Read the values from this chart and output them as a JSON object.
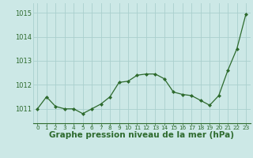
{
  "x": [
    0,
    1,
    2,
    3,
    4,
    5,
    6,
    7,
    8,
    9,
    10,
    11,
    12,
    13,
    14,
    15,
    16,
    17,
    18,
    19,
    20,
    21,
    22,
    23
  ],
  "y": [
    1011.0,
    1011.5,
    1011.1,
    1011.0,
    1011.0,
    1010.8,
    1011.0,
    1011.2,
    1011.5,
    1012.1,
    1012.15,
    1012.4,
    1012.45,
    1012.45,
    1012.25,
    1011.7,
    1011.6,
    1011.55,
    1011.35,
    1011.15,
    1011.55,
    1012.6,
    1013.5,
    1014.95
  ],
  "line_color": "#2d6a2d",
  "marker_color": "#2d6a2d",
  "bg_color": "#cce8e6",
  "grid_color": "#aacfcd",
  "title": "Graphe pression niveau de la mer (hPa)",
  "xlabel_ticks": [
    "0",
    "1",
    "2",
    "3",
    "4",
    "5",
    "6",
    "7",
    "8",
    "9",
    "10",
    "11",
    "12",
    "13",
    "14",
    "15",
    "16",
    "17",
    "18",
    "19",
    "20",
    "21",
    "22",
    "23"
  ],
  "yticks": [
    1011,
    1012,
    1013,
    1014,
    1015
  ],
  "ylim": [
    1010.4,
    1015.4
  ],
  "xlim": [
    -0.5,
    23.5
  ],
  "title_color": "#2d6a2d",
  "title_fontsize": 7.5,
  "tick_fontsize": 6.0,
  "xtick_fontsize": 5.2
}
